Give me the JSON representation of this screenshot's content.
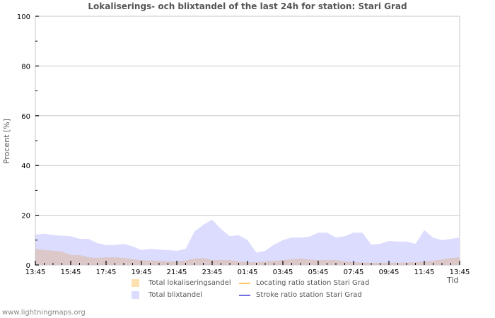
{
  "title": "Lokaliserings- och blixtandel of the last 24h for station: Stari Grad",
  "footer": "www.lightningmaps.org",
  "colors": {
    "lokaliseringsandel_fill": "#ffe0b0",
    "blixtandel_fill": "#dcdcff",
    "overlap_fill": "#dcc8c8",
    "locating_line": "#ffc864",
    "stroke_line": "#7070e0",
    "grid": "#c8c8c8",
    "axis": "#c8c8c8"
  },
  "legend": [
    {
      "label": "Total lokaliseringsandel",
      "type": "swatch",
      "color": "#ffe0b0"
    },
    {
      "label": "Total blixtandel",
      "type": "swatch",
      "color": "#dcdcff"
    },
    {
      "label": "Locating ratio station Stari Grad",
      "type": "line",
      "color": "#ffc864"
    },
    {
      "label": "Stroke ratio station Stari Grad",
      "type": "line",
      "color": "#7070e0"
    }
  ],
  "chart_data": {
    "type": "area",
    "title": "Lokaliserings- och blixtandel of the last 24h for station: Stari Grad",
    "xlabel": "Tid",
    "ylabel": "Procent   [%]",
    "ylim": [
      0,
      100
    ],
    "yticks": [
      0,
      20,
      40,
      60,
      80,
      100
    ],
    "xticks": [
      "13:45",
      "15:45",
      "17:45",
      "19:45",
      "21:45",
      "23:45",
      "01:45",
      "03:45",
      "05:45",
      "07:45",
      "09:45",
      "11:45",
      "13:45"
    ],
    "grid": true,
    "legend_position": "bottom",
    "x_hours_from_start": [
      0,
      0.5,
      1,
      1.5,
      2,
      2.5,
      3,
      3.5,
      4,
      4.5,
      5,
      5.5,
      6,
      6.5,
      7,
      7.5,
      8,
      8.5,
      9,
      9.5,
      10,
      10.5,
      11,
      11.5,
      12,
      12.5,
      13,
      13.5,
      14,
      14.5,
      15,
      15.5,
      16,
      16.5,
      17,
      17.5,
      18,
      18.5,
      19,
      19.5,
      20,
      20.5,
      21,
      21.5,
      22,
      22.5,
      23,
      23.5,
      24
    ],
    "series": [
      {
        "name": "Total blixtandel",
        "values": [
          12.2,
          12.6,
          12.0,
          11.8,
          11.6,
          10.5,
          10.5,
          8.8,
          8.0,
          8.0,
          8.5,
          7.5,
          6.0,
          6.5,
          6.2,
          6.0,
          5.7,
          6.5,
          13.4,
          16.2,
          18.2,
          14.5,
          11.6,
          12.0,
          10.0,
          5.0,
          5.7,
          8.2,
          10.0,
          11.0,
          11.0,
          11.4,
          13.0,
          13.0,
          11.0,
          11.6,
          13.0,
          13.0,
          8.2,
          8.5,
          9.7,
          9.4,
          9.4,
          8.5,
          14.0,
          11.0,
          10.0,
          10.5,
          11.0
        ]
      },
      {
        "name": "Total lokaliseringsandel",
        "values": [
          6.5,
          6.0,
          5.7,
          5.4,
          4.0,
          4.0,
          3.1,
          2.8,
          3.1,
          3.1,
          2.8,
          2.3,
          2.0,
          1.8,
          1.7,
          1.5,
          1.4,
          1.8,
          2.6,
          2.8,
          2.0,
          2.0,
          2.0,
          1.5,
          1.1,
          1.1,
          1.4,
          1.7,
          2.0,
          2.3,
          2.6,
          2.2,
          2.0,
          2.0,
          2.0,
          1.5,
          1.1,
          1.0,
          0.9,
          0.9,
          0.9,
          0.9,
          1.0,
          1.1,
          1.4,
          1.7,
          2.2,
          2.8,
          3.1
        ]
      },
      {
        "name": "Locating ratio station Stari Grad",
        "values": []
      },
      {
        "name": "Stroke ratio station Stari Grad",
        "values": []
      }
    ]
  }
}
